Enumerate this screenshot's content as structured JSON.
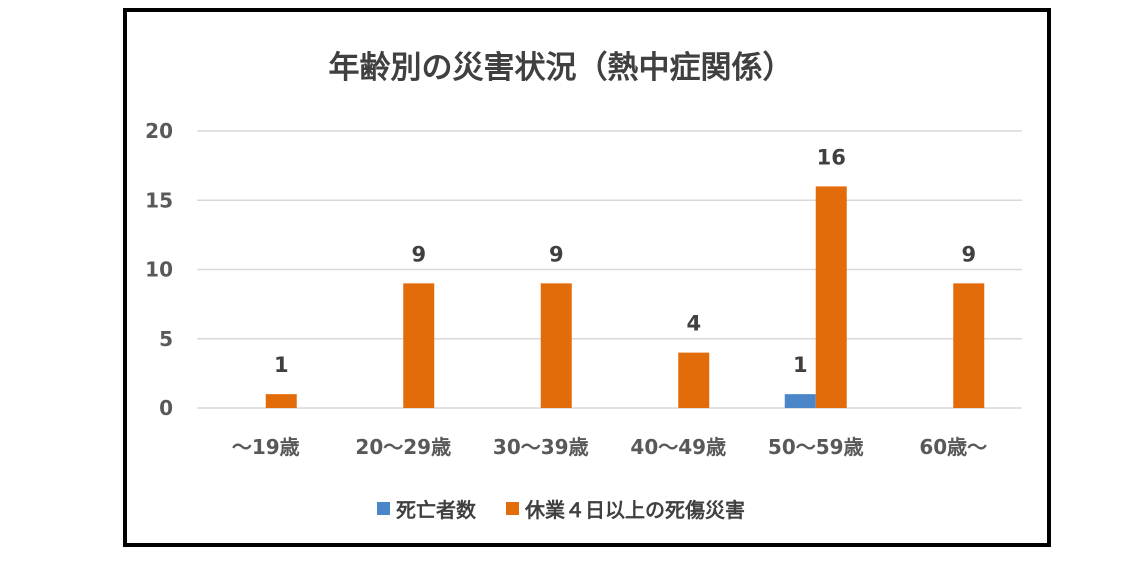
{
  "chart_data": {
    "type": "bar",
    "title": "年齢別の災害状況（熱中症関係）",
    "categories": [
      "～19歳",
      "20～29歳",
      "30～39歳",
      "40～49歳",
      "50～59歳",
      "60歳～"
    ],
    "series": [
      {
        "name": "死亡者数",
        "color": "#4a86c8",
        "values": [
          0,
          0,
          0,
          0,
          1,
          0
        ]
      },
      {
        "name": "休業４日以上の死傷災害",
        "color": "#e36c0a",
        "values": [
          1,
          9,
          9,
          4,
          16,
          9
        ]
      }
    ],
    "data_labels": [
      [
        "",
        "",
        "",
        "",
        "1",
        ""
      ],
      [
        "1",
        "9",
        "9",
        "4",
        "16",
        "9"
      ]
    ],
    "ylim": [
      0,
      20
    ],
    "yticks": [
      0,
      5,
      10,
      15,
      20
    ],
    "grid": true,
    "legend_position": "bottom"
  }
}
